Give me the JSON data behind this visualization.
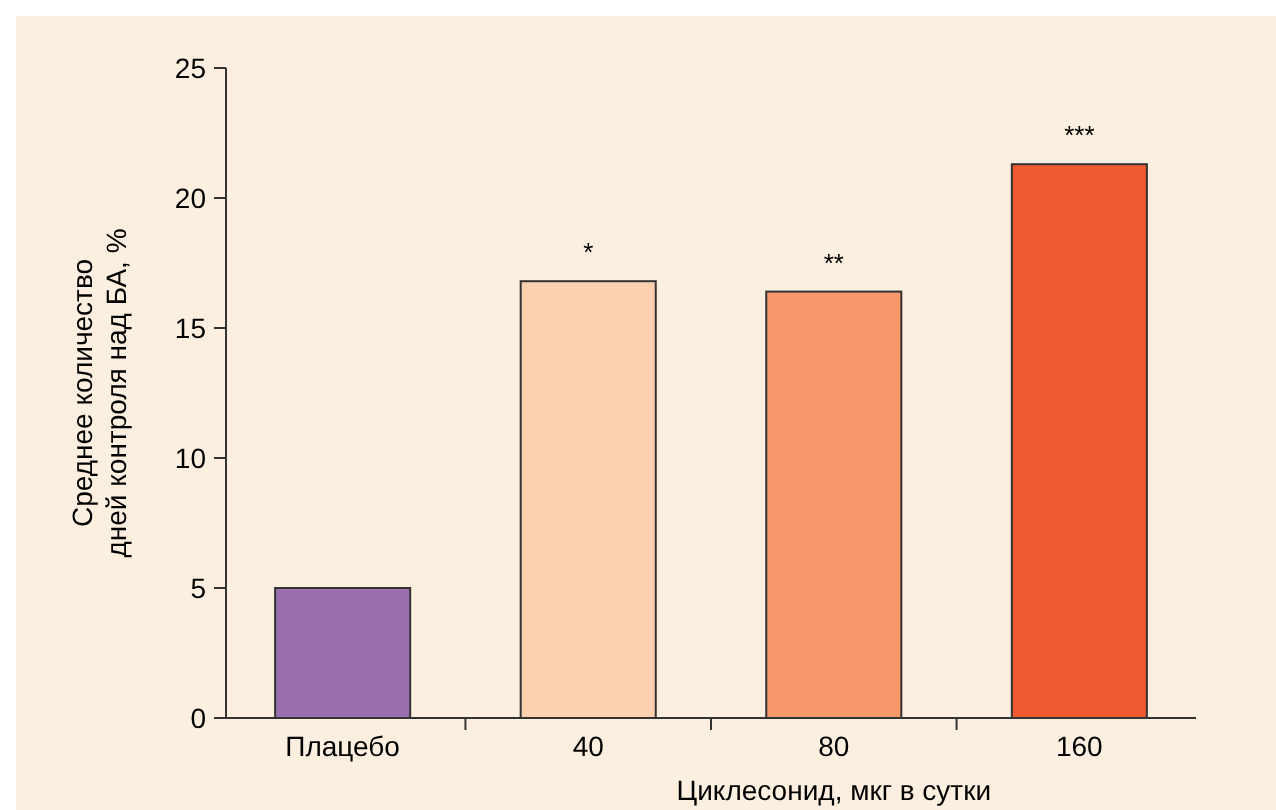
{
  "chart_data": {
    "type": "bar",
    "ylabel": "Среднее количество\nдней контроля над БА, %",
    "xlabel": "Циклесонид, мкг в сутки",
    "categories": [
      "Плацебо",
      "40",
      "80",
      "160"
    ],
    "values": [
      5.0,
      16.8,
      16.4,
      21.3
    ],
    "colors": [
      "#9b6fae",
      "#fbd1b0",
      "#f7976a",
      "#f05a30"
    ],
    "ylim": [
      0,
      25
    ],
    "yticks": [
      0,
      5,
      10,
      15,
      20,
      25
    ],
    "grid": false,
    "annotations": [
      {
        "text": "*",
        "x": "40",
        "y": 16.8
      },
      {
        "text": "**",
        "x": "80",
        "y": 16.4
      },
      {
        "text": "***",
        "x": "160",
        "y": 21.3
      }
    ]
  }
}
